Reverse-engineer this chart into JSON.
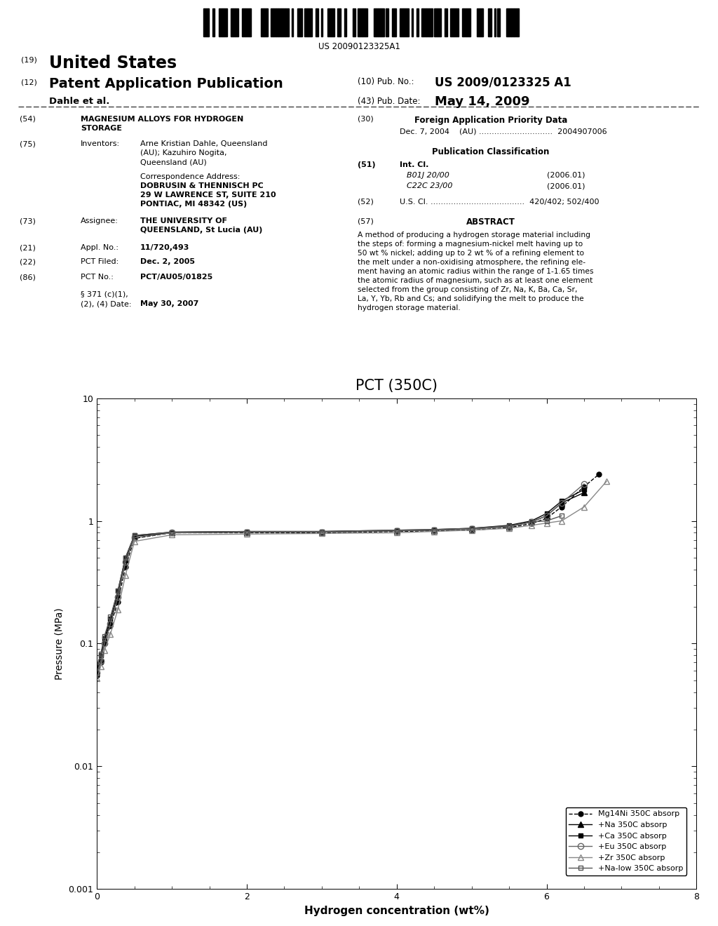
{
  "title": "PCT (350C)",
  "xlabel": "Hydrogen concentration (wt%)",
  "ylabel": "Pressure (MPa)",
  "xlim": [
    0,
    8
  ],
  "ylim_log": [
    0.001,
    10
  ],
  "series": {
    "Mg14Ni": {
      "label": "Mg14Ni 350C absorp",
      "color": "#000000",
      "linestyle": "--",
      "marker": "o",
      "markersize": 5,
      "fillstyle": "full",
      "x": [
        0.0,
        0.05,
        0.1,
        0.18,
        0.28,
        0.38,
        0.5,
        1.0,
        2.0,
        3.0,
        4.0,
        4.5,
        5.0,
        5.5,
        5.8,
        6.0,
        6.2,
        6.5,
        6.7
      ],
      "y": [
        0.055,
        0.07,
        0.1,
        0.14,
        0.22,
        0.42,
        0.72,
        0.8,
        0.8,
        0.8,
        0.82,
        0.83,
        0.84,
        0.88,
        0.95,
        1.05,
        1.3,
        1.9,
        2.4
      ]
    },
    "Na": {
      "label": "+Na 350C absorp",
      "color": "#000000",
      "linestyle": "-",
      "marker": "^",
      "markersize": 6,
      "fillstyle": "full",
      "x": [
        0.0,
        0.05,
        0.1,
        0.18,
        0.28,
        0.38,
        0.5,
        1.0,
        2.0,
        3.0,
        4.0,
        4.5,
        5.0,
        5.5,
        5.8,
        6.0,
        6.2,
        6.5
      ],
      "y": [
        0.06,
        0.075,
        0.105,
        0.15,
        0.25,
        0.48,
        0.75,
        0.8,
        0.81,
        0.81,
        0.83,
        0.84,
        0.86,
        0.9,
        0.98,
        1.1,
        1.4,
        1.7
      ]
    },
    "Ca": {
      "label": "+Ca 350C absorp",
      "color": "#000000",
      "linestyle": "-",
      "marker": "s",
      "markersize": 5,
      "fillstyle": "full",
      "x": [
        0.0,
        0.05,
        0.1,
        0.18,
        0.28,
        0.38,
        0.5,
        1.0,
        2.0,
        3.0,
        4.0,
        4.5,
        5.0,
        5.5,
        5.8,
        6.0,
        6.2,
        6.5
      ],
      "y": [
        0.065,
        0.08,
        0.11,
        0.16,
        0.27,
        0.5,
        0.76,
        0.81,
        0.82,
        0.82,
        0.84,
        0.85,
        0.87,
        0.92,
        1.0,
        1.15,
        1.45,
        1.8
      ]
    },
    "Eu": {
      "label": "+Eu 350C absorp",
      "color": "#666666",
      "linestyle": "-",
      "marker": "o",
      "markersize": 6,
      "fillstyle": "none",
      "x": [
        0.0,
        0.05,
        0.1,
        0.18,
        0.28,
        0.38,
        0.5,
        1.0,
        2.0,
        3.0,
        4.0,
        4.5,
        5.0,
        5.5,
        5.8,
        6.0,
        6.2,
        6.5
      ],
      "y": [
        0.058,
        0.072,
        0.1,
        0.145,
        0.24,
        0.46,
        0.73,
        0.8,
        0.81,
        0.81,
        0.83,
        0.84,
        0.86,
        0.9,
        0.98,
        1.1,
        1.4,
        2.0
      ]
    },
    "Zr": {
      "label": "+Zr 350C absorp",
      "color": "#888888",
      "linestyle": "-",
      "marker": "^",
      "markersize": 6,
      "fillstyle": "none",
      "x": [
        0.0,
        0.05,
        0.1,
        0.18,
        0.28,
        0.38,
        0.5,
        1.0,
        2.0,
        3.0,
        4.0,
        4.5,
        5.0,
        5.5,
        5.8,
        6.0,
        6.2,
        6.5,
        6.8
      ],
      "y": [
        0.052,
        0.065,
        0.088,
        0.12,
        0.19,
        0.36,
        0.68,
        0.77,
        0.78,
        0.79,
        0.8,
        0.82,
        0.84,
        0.87,
        0.92,
        0.96,
        1.0,
        1.3,
        2.1
      ]
    },
    "Na_low": {
      "label": "+Na-low 350C absorp",
      "color": "#555555",
      "linestyle": "-",
      "marker": "s",
      "markersize": 5,
      "fillstyle": "none",
      "x": [
        0.0,
        0.05,
        0.1,
        0.18,
        0.28,
        0.38,
        0.5,
        1.0,
        2.0,
        3.0,
        4.0,
        4.5,
        5.0,
        5.5,
        5.8,
        6.0,
        6.2
      ],
      "y": [
        0.065,
        0.082,
        0.115,
        0.165,
        0.27,
        0.5,
        0.76,
        0.81,
        0.82,
        0.82,
        0.84,
        0.85,
        0.87,
        0.91,
        0.98,
        1.0,
        1.1
      ]
    }
  },
  "header": {
    "barcode_text": "US 20090123325A1",
    "label_19": "(19)",
    "united_states": "United States",
    "label_12": "(12)",
    "patent_app_pub": "Patent Application Publication",
    "label_10": "(10) Pub. No.:",
    "pub_no": "US 2009/0123325 A1",
    "dahle_et_al": "Dahle et al.",
    "label_43": "(43) Pub. Date:",
    "pub_date": "May 14, 2009",
    "label_54": "(54)",
    "title_54_line1": "MAGNESIUM ALLOYS FOR HYDROGEN",
    "title_54_line2": "STORAGE",
    "label_75": "(75)",
    "inventors_label": "Inventors:",
    "inventors_line1": "Arne Kristian Dahle, Queensland",
    "inventors_line2": "(AU); Kazuhiro Nogita,",
    "inventors_line3": "Queensland (AU)",
    "corr_addr_label": "Correspondence Address:",
    "corr_line1": "DOBRUSIN & THENNISCH PC",
    "corr_line2": "29 W LAWRENCE ST, SUITE 210",
    "corr_line3": "PONTIAC, MI 48342 (US)",
    "label_73": "(73)",
    "assignee_label": "Assignee:",
    "assignee_line1": "THE UNIVERSITY OF",
    "assignee_line2": "QUEENSLAND, St Lucia (AU)",
    "label_21": "(21)",
    "appl_no_label": "Appl. No.:",
    "appl_no_val": "11/720,493",
    "label_22": "(22)",
    "pct_filed_label": "PCT Filed:",
    "pct_filed_val": "Dec. 2, 2005",
    "label_86": "(86)",
    "pct_no_label": "PCT No.:",
    "pct_no_val": "PCT/AU05/01825",
    "section_371_line1": "§ 371 (c)(1),",
    "section_371_line2": "(2), (4) Date:",
    "section_371_val": "May 30, 2007",
    "label_30": "(30)",
    "foreign_app_label": "Foreign Application Priority Data",
    "foreign_app_line": "Dec. 7, 2004    (AU) .............................  2004907006",
    "pub_class_label": "Publication Classification",
    "label_51": "(51)",
    "int_cl_label": "Int. Cl.",
    "int_cl_1": "B01J 20/00",
    "int_cl_1_date": "(2006.01)",
    "int_cl_2": "C22C 23/00",
    "int_cl_2_date": "(2006.01)",
    "label_52": "(52)",
    "us_cl_line": "U.S. Cl. .....................................  420/402; 502/400",
    "label_57": "(57)",
    "abstract_label": "ABSTRACT",
    "abstract_lines": [
      "A method of producing a hydrogen storage material including",
      "the steps of: forming a magnesium-nickel melt having up to",
      "50 wt % nickel; adding up to 2 wt % of a refining element to",
      "the melt under a non-oxidising atmosphere, the refining ele-",
      "ment having an atomic radius within the range of 1-1.65 times",
      "the atomic radius of magnesium, such as at least one element",
      "selected from the group consisting of Zr, Na, K, Ba, Ca, Sr,",
      "La, Y, Yb, Rb and Cs; and solidifying the melt to produce the",
      "hydrogen storage material."
    ]
  }
}
